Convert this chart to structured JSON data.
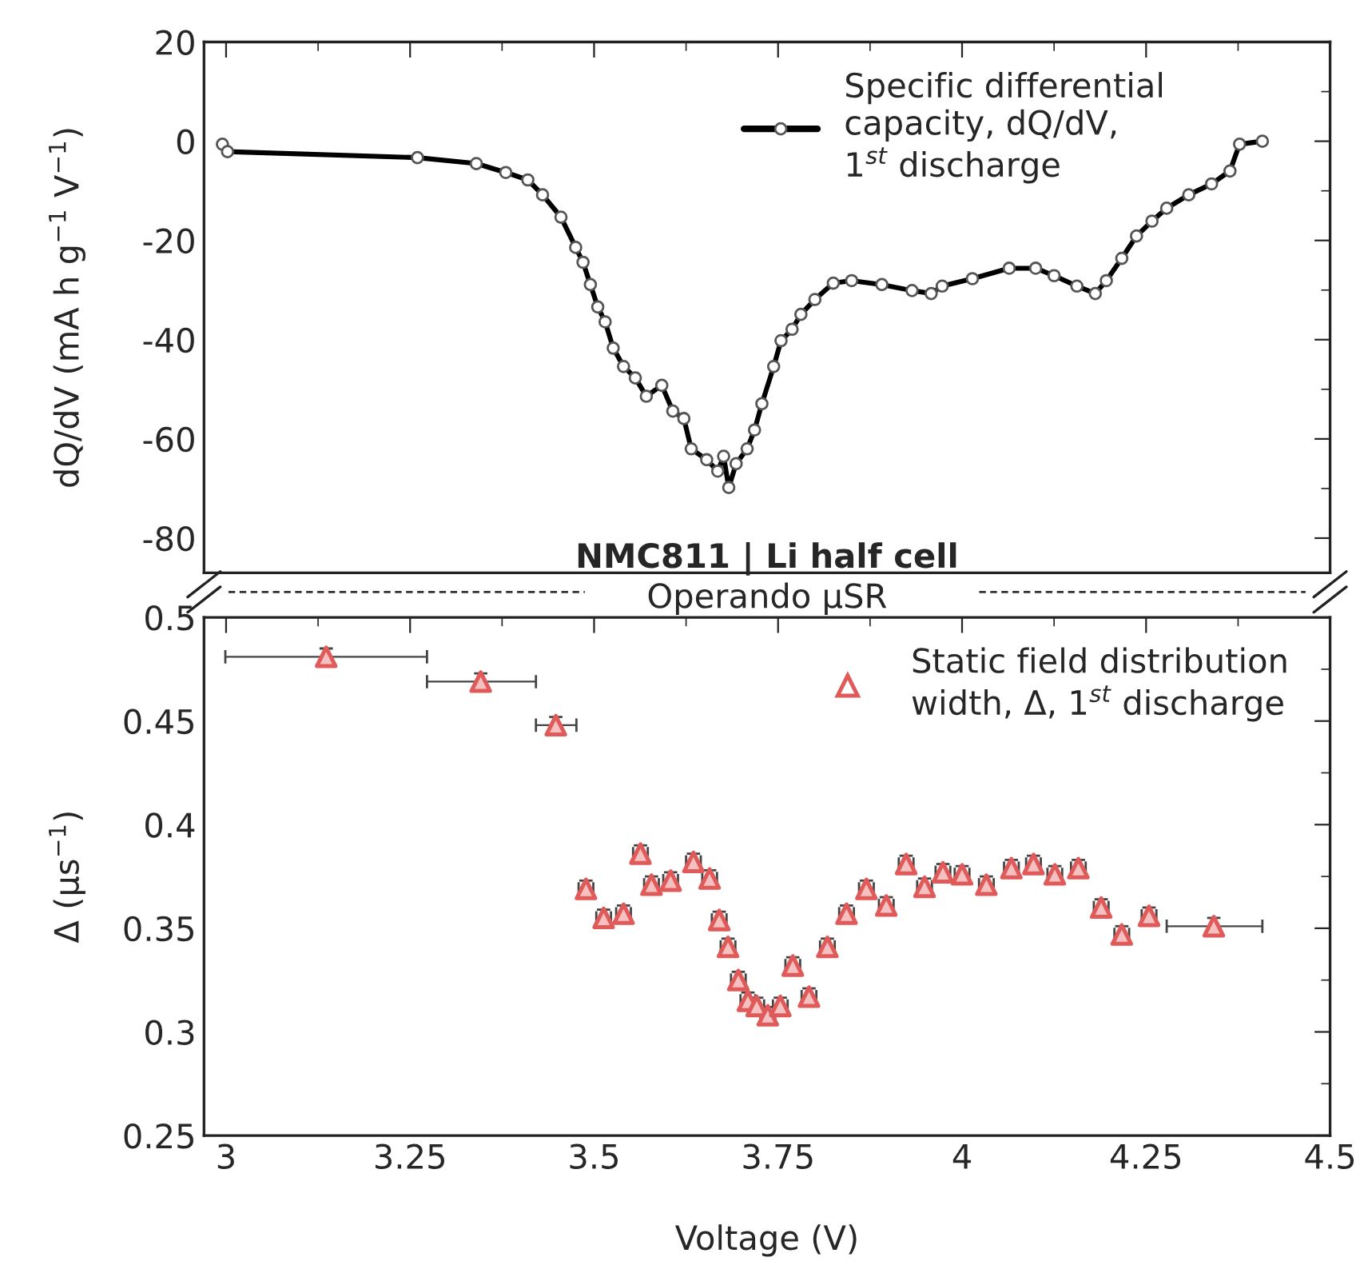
{
  "chart_data": [
    {
      "type": "line",
      "ylabel": "dQ/dV (mA h g$^{−1}$ V$^{−1}$)",
      "xlim": [
        2.97,
        4.5
      ],
      "xticks": [
        3,
        3.25,
        3.5,
        3.75,
        4,
        4.25,
        4.5
      ],
      "ylim": [
        -87,
        20
      ],
      "yticks": [
        20,
        0,
        -20,
        -40,
        -60,
        -80
      ],
      "tick_labels": "y",
      "marker": "circle",
      "line_style": "solid",
      "legend": "top right",
      "grid": false,
      "annotations": [
        "NMC811 | Li half cell"
      ],
      "series": [
        {
          "name": "Specific differential\ncapacity, dQ/dV,\n1$^{st}$ discharge",
          "color": "#000000",
          "x": [
            2.995,
            3.002,
            3.26,
            3.34,
            3.38,
            3.41,
            3.43,
            3.455,
            3.475,
            3.485,
            3.495,
            3.505,
            3.515,
            3.526,
            3.54,
            3.556,
            3.571,
            3.592,
            3.607,
            3.622,
            3.632,
            3.653,
            3.668,
            3.676,
            3.683,
            3.693,
            3.708,
            3.718,
            3.728,
            3.744,
            3.754,
            3.769,
            3.781,
            3.8,
            3.825,
            3.85,
            3.891,
            3.932,
            3.958,
            3.973,
            4.014,
            4.064,
            4.1,
            4.125,
            4.156,
            4.181,
            4.196,
            4.217,
            4.237,
            4.258,
            4.278,
            4.308,
            4.339,
            4.364,
            4.377,
            4.408
          ],
          "values": [
            -0.6,
            -2.1,
            -3.3,
            -4.5,
            -6.3,
            -7.8,
            -10.8,
            -15.3,
            -21.4,
            -24.4,
            -28.9,
            -33.4,
            -36.4,
            -41.7,
            -45.4,
            -47.7,
            -51.4,
            -49.2,
            -54.4,
            -55.9,
            -62,
            -64.2,
            -66.5,
            -63.5,
            -69.8,
            -65,
            -62,
            -58.2,
            -52.9,
            -45.4,
            -40.2,
            -37.9,
            -34.9,
            -31.9,
            -28.6,
            -28.1,
            -28.9,
            -30.1,
            -30.7,
            -29.2,
            -27.7,
            -25.6,
            -25.6,
            -27.1,
            -29.2,
            -30.7,
            -28.1,
            -23.6,
            -19.1,
            -16.1,
            -13.5,
            -10.8,
            -8.6,
            -6.0,
            -0.6,
            0
          ]
        }
      ]
    },
    {
      "type": "scatter",
      "xlabel": "Voltage (V)",
      "ylabel": "Δ (µs$^{−1}$)",
      "xlim": [
        2.97,
        4.5
      ],
      "xticks": [
        3,
        3.25,
        3.5,
        3.75,
        4,
        4.25,
        4.5
      ],
      "ylim": [
        0.25,
        0.5
      ],
      "yticks": [
        0.25,
        0.3,
        0.35,
        0.4,
        0.45,
        0.5
      ],
      "marker": "triangle",
      "legend": "top right",
      "grid": false,
      "annotations": [
        "Operando μSR"
      ],
      "series": [
        {
          "name": "Static field distribution\nwidth, Δ, 1$^{st}$ discharge",
          "color": "#e05a5a",
          "x": [
            3.136,
            3.346,
            3.448,
            3.489,
            3.513,
            3.54,
            3.563,
            3.578,
            3.604,
            3.635,
            3.657,
            3.67,
            3.682,
            3.696,
            3.709,
            3.721,
            3.736,
            3.753,
            3.77,
            3.792,
            3.817,
            3.843,
            3.87,
            3.897,
            3.924,
            3.949,
            3.974,
            4.0,
            4.033,
            4.067,
            4.097,
            4.126,
            4.158,
            4.189,
            4.217,
            4.254,
            4.342
          ],
          "values": [
            0.481,
            0.469,
            0.448,
            0.369,
            0.355,
            0.357,
            0.386,
            0.371,
            0.373,
            0.382,
            0.374,
            0.354,
            0.341,
            0.325,
            0.315,
            0.3125,
            0.308,
            0.3125,
            0.332,
            0.317,
            0.341,
            0.357,
            0.369,
            0.361,
            0.381,
            0.37,
            0.377,
            0.376,
            0.371,
            0.379,
            0.381,
            0.376,
            0.379,
            0.36,
            0.347,
            0.356,
            0.351
          ],
          "errors": [
            0.004,
            0.004,
            0.004,
            0.004,
            0.004,
            0.004,
            0.004,
            0.004,
            0.004,
            0.004,
            0.004,
            0.004,
            0.004,
            0.004,
            0.004,
            0.004,
            0.004,
            0.004,
            0.004,
            0.004,
            0.004,
            0.004,
            0.004,
            0.004,
            0.004,
            0.004,
            0.004,
            0.004,
            0.004,
            0.004,
            0.004,
            0.004,
            0.004,
            0.004,
            0.004,
            0.004,
            0.004
          ],
          "xerrors": [
            [
              2.999,
              3.273
            ],
            [
              3.273,
              3.421
            ],
            [
              3.421,
              3.476
            ],
            0.01,
            0.01,
            0.01,
            0.01,
            0.01,
            0.01,
            0.01,
            0.01,
            0.01,
            0.01,
            0.01,
            0.01,
            0.01,
            0.01,
            0.01,
            0.01,
            0.01,
            0.01,
            0.01,
            0.01,
            0.01,
            0.01,
            0.01,
            0.01,
            0.01,
            0.01,
            0.01,
            0.01,
            0.01,
            0.01,
            0.01,
            0.01,
            0.01,
            [
              4.278,
              4.408
            ]
          ]
        }
      ]
    }
  ]
}
